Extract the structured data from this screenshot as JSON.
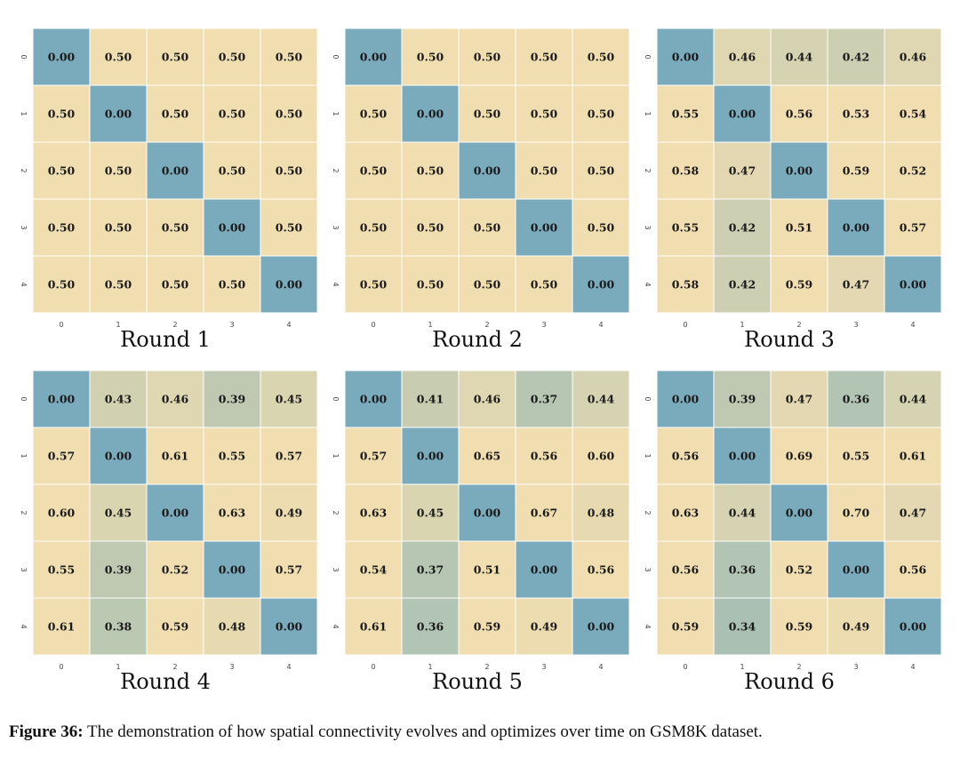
{
  "chart_data": [
    {
      "type": "heatmap",
      "title": "Round 1",
      "x_ticks": [
        "0",
        "1",
        "2",
        "3",
        "4"
      ],
      "y_ticks": [
        "0",
        "1",
        "2",
        "3",
        "4"
      ],
      "values": [
        [
          0.0,
          0.5,
          0.5,
          0.5,
          0.5
        ],
        [
          0.5,
          0.0,
          0.5,
          0.5,
          0.5
        ],
        [
          0.5,
          0.5,
          0.0,
          0.5,
          0.5
        ],
        [
          0.5,
          0.5,
          0.5,
          0.0,
          0.5
        ],
        [
          0.5,
          0.5,
          0.5,
          0.5,
          0.0
        ]
      ]
    },
    {
      "type": "heatmap",
      "title": "Round 2",
      "x_ticks": [
        "0",
        "1",
        "2",
        "3",
        "4"
      ],
      "y_ticks": [
        "0",
        "1",
        "2",
        "3",
        "4"
      ],
      "values": [
        [
          0.0,
          0.5,
          0.5,
          0.5,
          0.5
        ],
        [
          0.5,
          0.0,
          0.5,
          0.5,
          0.5
        ],
        [
          0.5,
          0.5,
          0.0,
          0.5,
          0.5
        ],
        [
          0.5,
          0.5,
          0.5,
          0.0,
          0.5
        ],
        [
          0.5,
          0.5,
          0.5,
          0.5,
          0.0
        ]
      ]
    },
    {
      "type": "heatmap",
      "title": "Round 3",
      "x_ticks": [
        "0",
        "1",
        "2",
        "3",
        "4"
      ],
      "y_ticks": [
        "0",
        "1",
        "2",
        "3",
        "4"
      ],
      "values": [
        [
          0.0,
          0.46,
          0.44,
          0.42,
          0.46
        ],
        [
          0.55,
          0.0,
          0.56,
          0.53,
          0.54
        ],
        [
          0.58,
          0.47,
          0.0,
          0.59,
          0.52
        ],
        [
          0.55,
          0.42,
          0.51,
          0.0,
          0.57
        ],
        [
          0.58,
          0.42,
          0.59,
          0.47,
          0.0
        ]
      ]
    },
    {
      "type": "heatmap",
      "title": "Round 4",
      "x_ticks": [
        "0",
        "1",
        "2",
        "3",
        "4"
      ],
      "y_ticks": [
        "0",
        "1",
        "2",
        "3",
        "4"
      ],
      "values": [
        [
          0.0,
          0.43,
          0.46,
          0.39,
          0.45
        ],
        [
          0.57,
          0.0,
          0.61,
          0.55,
          0.57
        ],
        [
          0.6,
          0.45,
          0.0,
          0.63,
          0.49
        ],
        [
          0.55,
          0.39,
          0.52,
          0.0,
          0.57
        ],
        [
          0.61,
          0.38,
          0.59,
          0.48,
          0.0
        ]
      ]
    },
    {
      "type": "heatmap",
      "title": "Round 5",
      "x_ticks": [
        "0",
        "1",
        "2",
        "3",
        "4"
      ],
      "y_ticks": [
        "0",
        "1",
        "2",
        "3",
        "4"
      ],
      "values": [
        [
          0.0,
          0.41,
          0.46,
          0.37,
          0.44
        ],
        [
          0.57,
          0.0,
          0.65,
          0.56,
          0.6
        ],
        [
          0.63,
          0.45,
          0.0,
          0.67,
          0.48
        ],
        [
          0.54,
          0.37,
          0.51,
          0.0,
          0.56
        ],
        [
          0.61,
          0.36,
          0.59,
          0.49,
          0.0
        ]
      ]
    },
    {
      "type": "heatmap",
      "title": "Round 6",
      "x_ticks": [
        "0",
        "1",
        "2",
        "3",
        "4"
      ],
      "y_ticks": [
        "0",
        "1",
        "2",
        "3",
        "4"
      ],
      "values": [
        [
          0.0,
          0.39,
          0.47,
          0.36,
          0.44
        ],
        [
          0.56,
          0.0,
          0.69,
          0.55,
          0.61
        ],
        [
          0.63,
          0.44,
          0.0,
          0.7,
          0.47
        ],
        [
          0.56,
          0.36,
          0.52,
          0.0,
          0.56
        ],
        [
          0.59,
          0.34,
          0.59,
          0.49,
          0.0
        ]
      ]
    }
  ],
  "color_scale": {
    "zero": "#7aabbd",
    "low": "#a9c0b3",
    "high": "#f0deb0"
  },
  "caption": {
    "label": "Figure 36:",
    "text": " The demonstration of how spatial connectivity evolves and optimizes over time on GSM8K dataset."
  }
}
